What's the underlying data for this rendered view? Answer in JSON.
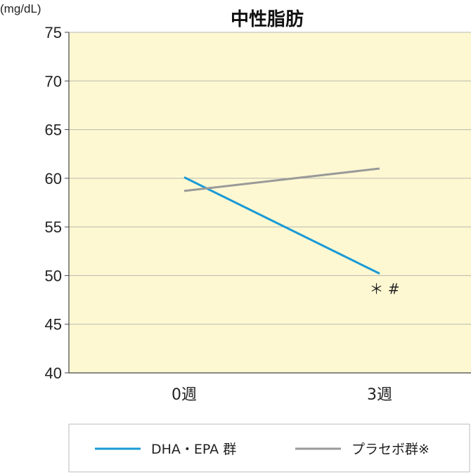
{
  "chart_data": {
    "type": "line",
    "title": "中性脂肪",
    "ylabel": "(mg/dL)",
    "xlabel": "",
    "categories": [
      "0週",
      "3週"
    ],
    "ylim": [
      40,
      75
    ],
    "yticks": [
      40,
      45,
      50,
      55,
      60,
      65,
      70,
      75
    ],
    "grid": true,
    "legend_position": "bottom",
    "plot_background": "#fdf8d2",
    "series": [
      {
        "name": "DHA・EPA 群",
        "values": [
          60.1,
          50.2
        ],
        "color": "#1a9ad6"
      },
      {
        "name": "プラセボ群※",
        "values": [
          58.7,
          61.0
        ],
        "color": "#9a9a9a"
      }
    ],
    "annotations": [
      {
        "text": "＊ #",
        "category": "3週",
        "series": "DHA・EPA 群"
      }
    ]
  }
}
